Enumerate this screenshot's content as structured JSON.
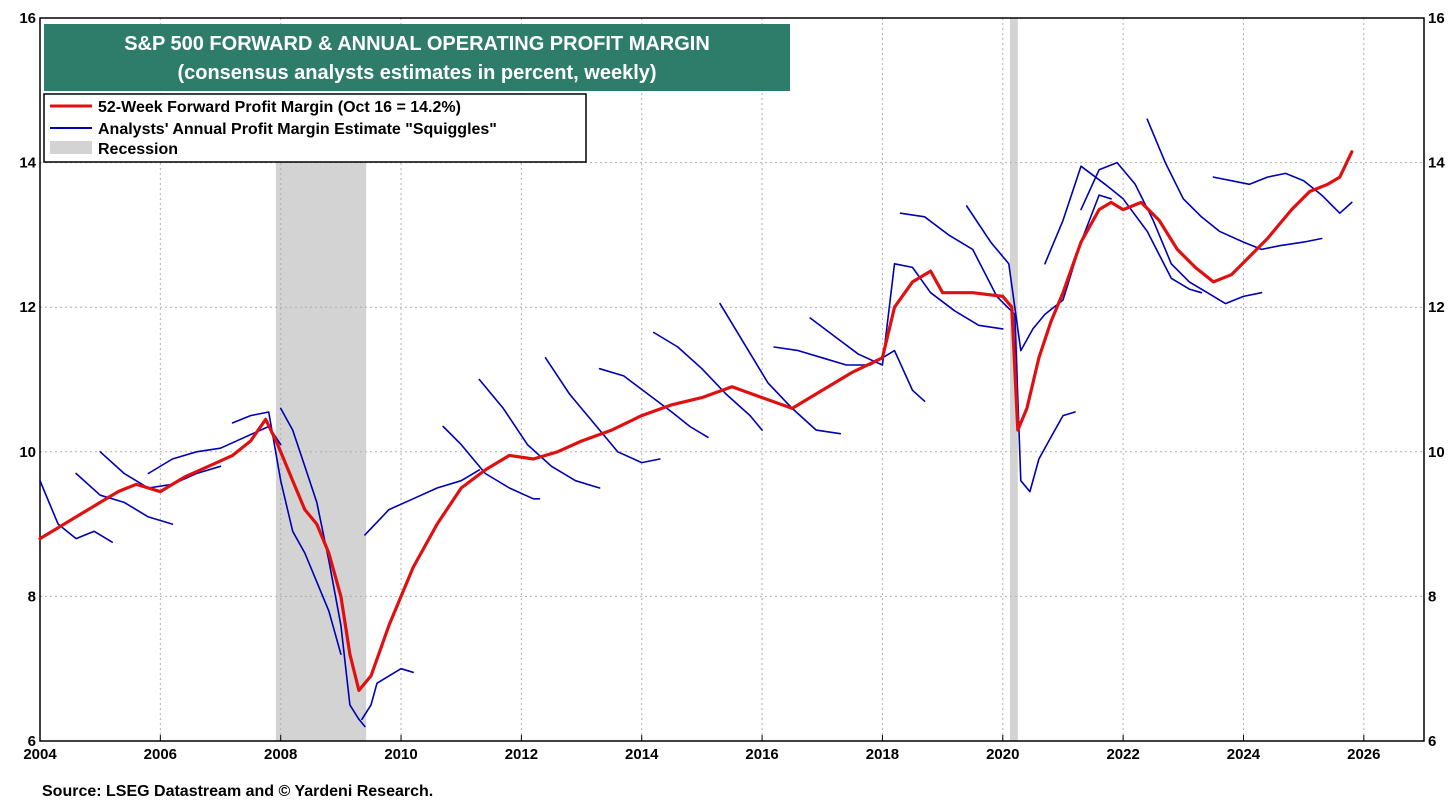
{
  "chart_data": {
    "type": "line",
    "title": "S&P 500 FORWARD & ANNUAL OPERATING PROFIT MARGIN",
    "subtitle": "(consensus analysts estimates in percent, weekly)",
    "source": "Source: LSEG Datastream and © Yardeni Research.",
    "xlim": [
      2004,
      2027
    ],
    "ylim": [
      6,
      16
    ],
    "x_ticks": [
      2004,
      2006,
      2008,
      2010,
      2012,
      2014,
      2016,
      2018,
      2020,
      2022,
      2024,
      2026
    ],
    "y_ticks": [
      6,
      8,
      10,
      12,
      14,
      16
    ],
    "grid": true,
    "legend_position": "top-left",
    "colors": {
      "title_bg": "#2e7d6b",
      "forward": "#e01010",
      "squiggle": "#0000b4",
      "recession": "#d3d3d3",
      "grid": "#b0b0b0"
    },
    "legend": [
      {
        "label": "52-Week Forward Profit Margin (Oct 16 = 14.2%)",
        "kind": "line",
        "color": "#e01010"
      },
      {
        "label": "Analysts' Annual Profit Margin Estimate \"Squiggles\"",
        "kind": "line",
        "color": "#0000b4"
      },
      {
        "label": "Recession",
        "kind": "box",
        "color": "#d3d3d3"
      }
    ],
    "recessions": [
      [
        2007.92,
        2009.42
      ],
      [
        2020.12,
        2020.25
      ]
    ],
    "series": [
      {
        "name": "52-Week Forward Profit Margin",
        "color": "#e01010",
        "x": [
          2004.0,
          2004.3,
          2004.6,
          2005.0,
          2005.3,
          2005.6,
          2006.0,
          2006.4,
          2006.8,
          2007.2,
          2007.5,
          2007.75,
          2007.95,
          2008.2,
          2008.4,
          2008.6,
          2008.8,
          2009.0,
          2009.15,
          2009.3,
          2009.5,
          2009.8,
          2010.2,
          2010.6,
          2011.0,
          2011.4,
          2011.8,
          2012.2,
          2012.6,
          2013.0,
          2013.5,
          2014.0,
          2014.5,
          2015.0,
          2015.5,
          2016.0,
          2016.5,
          2017.0,
          2017.5,
          2018.0,
          2018.2,
          2018.5,
          2018.8,
          2019.0,
          2019.5,
          2020.0,
          2020.15,
          2020.25,
          2020.4,
          2020.6,
          2020.8,
          2021.0,
          2021.3,
          2021.6,
          2021.8,
          2022.0,
          2022.3,
          2022.6,
          2022.9,
          2023.2,
          2023.5,
          2023.8,
          2024.1,
          2024.4,
          2024.8,
          2025.1,
          2025.4,
          2025.6,
          2025.8
        ],
        "y": [
          8.8,
          8.95,
          9.1,
          9.3,
          9.45,
          9.55,
          9.45,
          9.65,
          9.8,
          9.95,
          10.15,
          10.45,
          10.1,
          9.6,
          9.2,
          9.0,
          8.6,
          8.0,
          7.2,
          6.7,
          6.9,
          7.6,
          8.4,
          9.0,
          9.5,
          9.75,
          9.95,
          9.9,
          10.0,
          10.15,
          10.3,
          10.5,
          10.65,
          10.75,
          10.9,
          10.75,
          10.6,
          10.85,
          11.1,
          11.3,
          12.0,
          12.35,
          12.5,
          12.2,
          12.2,
          12.15,
          12.0,
          10.3,
          10.6,
          11.3,
          11.8,
          12.2,
          12.9,
          13.35,
          13.45,
          13.35,
          13.45,
          13.2,
          12.8,
          12.55,
          12.35,
          12.45,
          12.7,
          12.95,
          13.35,
          13.6,
          13.7,
          13.8,
          14.15
        ]
      },
      {
        "name": "Squiggle 2004",
        "color": "#0000b4",
        "x": [
          2004.0,
          2004.3,
          2004.6,
          2004.9,
          2005.2
        ],
        "y": [
          9.6,
          9.0,
          8.8,
          8.9,
          8.75
        ]
      },
      {
        "name": "Squiggle 2005",
        "color": "#0000b4",
        "x": [
          2004.6,
          2005.0,
          2005.4,
          2005.8,
          2006.2
        ],
        "y": [
          9.7,
          9.4,
          9.3,
          9.1,
          9.0
        ]
      },
      {
        "name": "Squiggle 2006",
        "color": "#0000b4",
        "x": [
          2005.0,
          2005.4,
          2005.8,
          2006.2,
          2006.6,
          2007.0
        ],
        "y": [
          10.0,
          9.7,
          9.5,
          9.55,
          9.7,
          9.8
        ]
      },
      {
        "name": "Squiggle 2007",
        "color": "#0000b4",
        "x": [
          2005.8,
          2006.2,
          2006.6,
          2007.0,
          2007.4,
          2007.8,
          2008.0
        ],
        "y": [
          9.7,
          9.9,
          10.0,
          10.05,
          10.2,
          10.35,
          10.1
        ]
      },
      {
        "name": "Squiggle 2008",
        "color": "#0000b4",
        "x": [
          2007.2,
          2007.5,
          2007.8,
          2008.0,
          2008.2,
          2008.4,
          2008.6,
          2008.8,
          2009.0
        ],
        "y": [
          10.4,
          10.5,
          10.55,
          9.6,
          8.9,
          8.6,
          8.2,
          7.8,
          7.2
        ]
      },
      {
        "name": "Squiggle 2009",
        "color": "#0000b4",
        "x": [
          2008.0,
          2008.2,
          2008.4,
          2008.6,
          2008.8,
          2009.0,
          2009.15,
          2009.3,
          2009.4
        ],
        "y": [
          10.6,
          10.3,
          9.8,
          9.3,
          8.5,
          7.6,
          6.5,
          6.3,
          6.2
        ]
      },
      {
        "name": "Squiggle 2010",
        "color": "#0000b4",
        "x": [
          2009.35,
          2009.5,
          2009.6,
          2009.8,
          2010.0,
          2010.2
        ],
        "y": [
          6.3,
          6.5,
          6.8,
          6.9,
          7.0,
          6.95
        ]
      },
      {
        "name": "Squiggle 2011",
        "color": "#0000b4",
        "x": [
          2009.4,
          2009.8,
          2010.2,
          2010.6,
          2011.0,
          2011.3
        ],
        "y": [
          8.85,
          9.2,
          9.35,
          9.5,
          9.6,
          9.75
        ]
      },
      {
        "name": "Squiggle 2012",
        "color": "#0000b4",
        "x": [
          2010.7,
          2011.0,
          2011.4,
          2011.8,
          2012.2,
          2012.3
        ],
        "y": [
          10.35,
          10.1,
          9.7,
          9.5,
          9.35,
          9.35
        ]
      },
      {
        "name": "Squiggle 2013",
        "color": "#0000b4",
        "x": [
          2011.3,
          2011.7,
          2012.1,
          2012.5,
          2012.9,
          2013.3
        ],
        "y": [
          11.0,
          10.6,
          10.1,
          9.8,
          9.6,
          9.5
        ]
      },
      {
        "name": "Squiggle 2014",
        "color": "#0000b4",
        "x": [
          2012.4,
          2012.8,
          2013.2,
          2013.6,
          2014.0,
          2014.3
        ],
        "y": [
          11.3,
          10.8,
          10.4,
          10.0,
          9.85,
          9.9
        ]
      },
      {
        "name": "Squiggle 2015",
        "color": "#0000b4",
        "x": [
          2013.3,
          2013.7,
          2014.1,
          2014.5,
          2014.8,
          2015.1
        ],
        "y": [
          11.15,
          11.05,
          10.8,
          10.55,
          10.35,
          10.2
        ]
      },
      {
        "name": "Squiggle 2016",
        "color": "#0000b4",
        "x": [
          2014.2,
          2014.6,
          2015.0,
          2015.4,
          2015.8,
          2016.0
        ],
        "y": [
          11.65,
          11.45,
          11.15,
          10.8,
          10.5,
          10.3
        ]
      },
      {
        "name": "Squiggle 2017",
        "color": "#0000b4",
        "x": [
          2015.3,
          2015.7,
          2016.1,
          2016.5,
          2016.9,
          2017.3
        ],
        "y": [
          12.05,
          11.5,
          10.95,
          10.6,
          10.3,
          10.25
        ]
      },
      {
        "name": "Squiggle 2018",
        "color": "#0000b4",
        "x": [
          2016.2,
          2016.6,
          2017.0,
          2017.4,
          2017.8,
          2018.2,
          2018.5,
          2018.7
        ],
        "y": [
          11.45,
          11.4,
          11.3,
          11.2,
          11.2,
          11.4,
          10.85,
          10.7
        ]
      },
      {
        "name": "Squiggle 2019",
        "color": "#0000b4",
        "x": [
          2016.8,
          2017.2,
          2017.6,
          2018.0,
          2018.2,
          2018.5,
          2018.8,
          2019.2,
          2019.6,
          2020.0
        ],
        "y": [
          11.85,
          11.6,
          11.35,
          11.2,
          12.6,
          12.55,
          12.2,
          11.95,
          11.75,
          11.7
        ]
      },
      {
        "name": "Squiggle 2020",
        "color": "#0000b4",
        "x": [
          2018.3,
          2018.7,
          2019.1,
          2019.5,
          2019.9,
          2020.2,
          2020.3,
          2020.45,
          2020.6,
          2020.8,
          2021.0,
          2021.2
        ],
        "y": [
          13.3,
          13.25,
          13.0,
          12.8,
          12.15,
          11.9,
          9.6,
          9.45,
          9.9,
          10.2,
          10.5,
          10.55
        ]
      },
      {
        "name": "Squiggle 2021",
        "color": "#0000b4",
        "x": [
          2019.4,
          2019.8,
          2020.1,
          2020.3,
          2020.5,
          2020.7,
          2021.0,
          2021.3,
          2021.6,
          2021.8
        ],
        "y": [
          13.4,
          12.9,
          12.6,
          11.4,
          11.7,
          11.9,
          12.1,
          12.9,
          13.55,
          13.5
        ]
      },
      {
        "name": "Squiggle 2022",
        "color": "#0000b4",
        "x": [
          2020.7,
          2021.0,
          2021.3,
          2021.7,
          2022.0,
          2022.4,
          2022.8,
          2023.1,
          2023.3
        ],
        "y": [
          12.6,
          13.2,
          13.95,
          13.7,
          13.5,
          13.05,
          12.4,
          12.25,
          12.2
        ]
      },
      {
        "name": "Squiggle 2023",
        "color": "#0000b4",
        "x": [
          2021.3,
          2021.6,
          2021.9,
          2022.2,
          2022.5,
          2022.8,
          2023.1,
          2023.4,
          2023.7,
          2024.0,
          2024.3
        ],
        "y": [
          13.35,
          13.9,
          14.0,
          13.7,
          13.2,
          12.6,
          12.35,
          12.2,
          12.05,
          12.15,
          12.2
        ]
      },
      {
        "name": "Squiggle 2024",
        "color": "#0000b4",
        "x": [
          2022.4,
          2022.7,
          2023.0,
          2023.3,
          2023.6,
          2024.0,
          2024.3,
          2024.6,
          2025.0,
          2025.3
        ],
        "y": [
          14.6,
          14.0,
          13.5,
          13.25,
          13.05,
          12.9,
          12.8,
          12.85,
          12.9,
          12.95
        ]
      },
      {
        "name": "Squiggle 2025",
        "color": "#0000b4",
        "x": [
          2023.5,
          2023.8,
          2024.1,
          2024.4,
          2024.7,
          2025.0,
          2025.3,
          2025.6,
          2025.8
        ],
        "y": [
          13.8,
          13.75,
          13.7,
          13.8,
          13.85,
          13.75,
          13.55,
          13.3,
          13.45
        ]
      }
    ]
  }
}
